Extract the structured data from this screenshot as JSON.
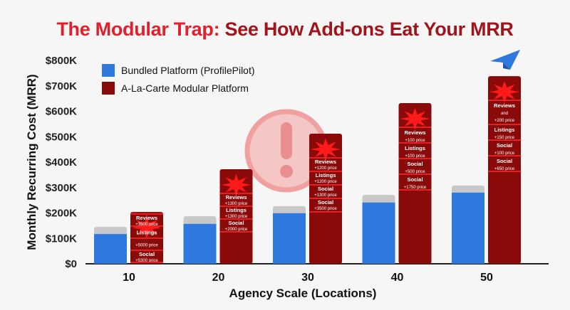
{
  "title_part1": "The Modular Trap:",
  "title_part2": " See How Add-ons Eat Your MRR",
  "chart_data": {
    "type": "bar",
    "title": "The Modular Trap: See How Add-ons Eat Your MRR",
    "xlabel": "Agency Scale (Locations)",
    "ylabel": "Monthly Recurring Cost (MRR)",
    "categories": [
      "10",
      "20",
      "30",
      "40",
      "50"
    ],
    "ylim": [
      0,
      800000
    ],
    "yticks": [
      "$0",
      "$100K",
      "$200K",
      "$300K",
      "$400K",
      "$500K",
      "$600K",
      "$700K",
      "$800K"
    ],
    "grid": false,
    "legend": "top-left",
    "series": [
      {
        "name": "Bundled Platform (ProfilePilot)",
        "values": [
          117000,
          157000,
          199000,
          241000,
          280000
        ],
        "cap_values": [
          145000,
          187000,
          227000,
          271000,
          308000
        ],
        "color": "#2f78dd",
        "cap_color": "#c8c8c8"
      },
      {
        "name": "A-La-Carte Modular Platform",
        "values": [
          204000,
          372000,
          512000,
          632000,
          738000
        ],
        "color": "#8a0a0a"
      }
    ],
    "annotations": [
      [
        [
          "Reviews",
          "+3500 price"
        ],
        [
          "Listings",
          ""
        ],
        [
          "",
          "+5000 price"
        ],
        [
          "Social",
          "+5300 price"
        ]
      ],
      [
        [
          "Reviews",
          "+1300 price"
        ],
        [
          "Listings",
          "+1300 price"
        ],
        [
          "Social",
          "+2000 price"
        ]
      ],
      [
        [
          "Reviews",
          "+1200 price"
        ],
        [
          "Listings",
          "+1200 price"
        ],
        [
          "Social",
          "+1300 price"
        ],
        [
          "Social",
          "+3500 price"
        ]
      ],
      [
        [
          "Reviews",
          "+100 price"
        ],
        [
          "Listings",
          "+100 price"
        ],
        [
          "Social",
          "+500 price"
        ],
        [
          "Social",
          "+1750 price"
        ]
      ],
      [
        [
          "Reviews",
          "and",
          "+200 price"
        ],
        [
          "Listings",
          "+150 price"
        ],
        [
          "Social",
          "+100 price"
        ],
        [
          "Social",
          "+650 price"
        ]
      ]
    ]
  },
  "icons": {
    "warning": "exclamation-circle-icon",
    "corner": "paper-plane-icon"
  }
}
